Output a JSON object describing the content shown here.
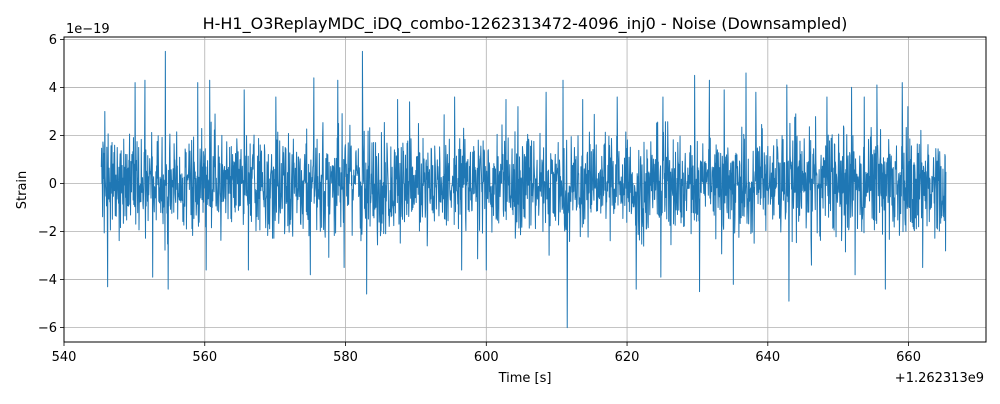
{
  "chart_data": {
    "type": "line",
    "title": "H-H1_O3ReplayMDC_iDQ_combo-1262313472-4096_inj0 - Noise (Downsampled)",
    "xlabel": "Time [s]",
    "ylabel": "Strain",
    "x_offset_label": "+1.262313e9",
    "y_scale_label": "1e−19",
    "xlim": [
      540,
      671
    ],
    "ylim": [
      -6.6,
      6.1
    ],
    "xticks": [
      540,
      560,
      580,
      600,
      620,
      640,
      660
    ],
    "xtick_labels": [
      "540",
      "560",
      "580",
      "600",
      "620",
      "640",
      "660"
    ],
    "yticks": [
      -6,
      -4,
      -2,
      0,
      2,
      4,
      6
    ],
    "ytick_labels": [
      "−6",
      "−4",
      "−2",
      "0",
      "2",
      "4",
      "6"
    ],
    "grid": true,
    "series": [
      {
        "color": "#1f77b4",
        "x_start": 545.3,
        "x_end": 665.3,
        "baseline_envelope": 3.3,
        "peaks": [
          {
            "x": 545.8,
            "y": 3.0
          },
          {
            "x": 546.2,
            "y": -4.3
          },
          {
            "x": 550.1,
            "y": 4.2
          },
          {
            "x": 551.5,
            "y": 4.3
          },
          {
            "x": 552.6,
            "y": -3.9
          },
          {
            "x": 554.4,
            "y": 5.5
          },
          {
            "x": 554.8,
            "y": -4.4
          },
          {
            "x": 559.0,
            "y": 4.2
          },
          {
            "x": 560.2,
            "y": -3.6
          },
          {
            "x": 560.7,
            "y": 4.3
          },
          {
            "x": 565.6,
            "y": 3.9
          },
          {
            "x": 566.2,
            "y": -3.6
          },
          {
            "x": 570.1,
            "y": 3.6
          },
          {
            "x": 575.5,
            "y": 4.4
          },
          {
            "x": 575.0,
            "y": -3.8
          },
          {
            "x": 578.9,
            "y": 4.3
          },
          {
            "x": 579.8,
            "y": -3.5
          },
          {
            "x": 582.4,
            "y": 5.5
          },
          {
            "x": 583.0,
            "y": -4.6
          },
          {
            "x": 587.4,
            "y": 3.5
          },
          {
            "x": 589.1,
            "y": 3.4
          },
          {
            "x": 595.5,
            "y": 3.6
          },
          {
            "x": 596.5,
            "y": -3.6
          },
          {
            "x": 600.0,
            "y": -3.6
          },
          {
            "x": 602.8,
            "y": 3.5
          },
          {
            "x": 604.5,
            "y": 3.2
          },
          {
            "x": 608.5,
            "y": 3.8
          },
          {
            "x": 610.9,
            "y": 4.3
          },
          {
            "x": 611.5,
            "y": -6.0
          },
          {
            "x": 613.7,
            "y": 3.5
          },
          {
            "x": 618.6,
            "y": 3.6
          },
          {
            "x": 621.3,
            "y": -4.4
          },
          {
            "x": 624.8,
            "y": -3.9
          },
          {
            "x": 625.1,
            "y": 3.6
          },
          {
            "x": 629.6,
            "y": 4.5
          },
          {
            "x": 630.3,
            "y": -4.5
          },
          {
            "x": 631.7,
            "y": 4.3
          },
          {
            "x": 633.8,
            "y": 3.9
          },
          {
            "x": 635.1,
            "y": -4.2
          },
          {
            "x": 636.9,
            "y": 4.6
          },
          {
            "x": 638.3,
            "y": 3.8
          },
          {
            "x": 642.7,
            "y": 4.1
          },
          {
            "x": 643.0,
            "y": -4.9
          },
          {
            "x": 646.2,
            "y": -3.4
          },
          {
            "x": 648.4,
            "y": 3.6
          },
          {
            "x": 651.9,
            "y": 4.0
          },
          {
            "x": 652.4,
            "y": -3.8
          },
          {
            "x": 653.7,
            "y": 3.6
          },
          {
            "x": 655.5,
            "y": 4.1
          },
          {
            "x": 656.7,
            "y": -4.4
          },
          {
            "x": 659.1,
            "y": 4.2
          },
          {
            "x": 659.9,
            "y": 3.2
          },
          {
            "x": 662.0,
            "y": -3.5
          }
        ]
      }
    ]
  }
}
